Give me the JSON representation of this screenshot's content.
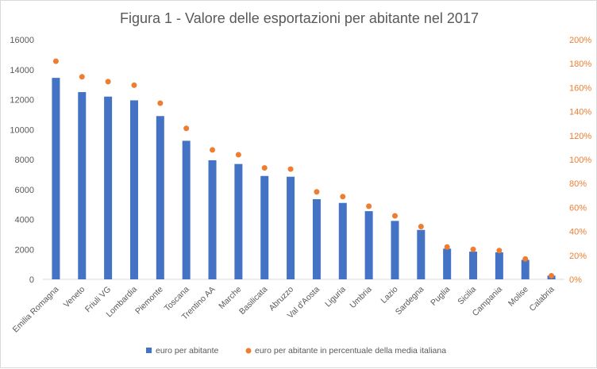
{
  "chart_data": {
    "type": "bar",
    "title": "Figura 1 - Valore delle esportazioni per abitante nel 2017",
    "categories": [
      "Emilia Romagna",
      "Veneto",
      "Friuli VG",
      "Lombardia",
      "Piemonte",
      "Toscana",
      "Trentino AA",
      "Marche",
      "Basilicata",
      "Abruzzo",
      "Val d'Aosta",
      "Liguria",
      "Umbria",
      "Lazio",
      "Sardegna",
      "Puglia",
      "Sicilia",
      "Campania",
      "Molise",
      "Calabria"
    ],
    "series": [
      {
        "name": "euro per abitante",
        "type": "bar",
        "axis": "left",
        "color": "#4472c4",
        "values": [
          13450,
          12500,
          12200,
          11950,
          10900,
          9250,
          7950,
          7700,
          6900,
          6850,
          5350,
          5100,
          4550,
          3900,
          3300,
          2050,
          1850,
          1800,
          1300,
          250
        ]
      },
      {
        "name": "euro per abitante in percentuale della media italiana",
        "type": "scatter",
        "axis": "right",
        "color": "#ed7d31",
        "values": [
          182,
          169,
          165,
          162,
          147,
          126,
          108,
          104,
          93,
          92,
          73,
          69,
          61,
          53,
          44,
          27,
          25,
          24,
          17,
          3
        ]
      }
    ],
    "y_left": {
      "ylim": [
        0,
        16000
      ],
      "ticks": [
        "0",
        "2000",
        "4000",
        "6000",
        "8000",
        "10000",
        "12000",
        "14000",
        "16000"
      ]
    },
    "y_right": {
      "ylim": [
        0,
        200
      ],
      "ticks": [
        "0%",
        "20%",
        "40%",
        "60%",
        "80%",
        "100%",
        "120%",
        "140%",
        "160%",
        "180%",
        "200%"
      ]
    },
    "legend_position": "bottom",
    "grid": false
  }
}
